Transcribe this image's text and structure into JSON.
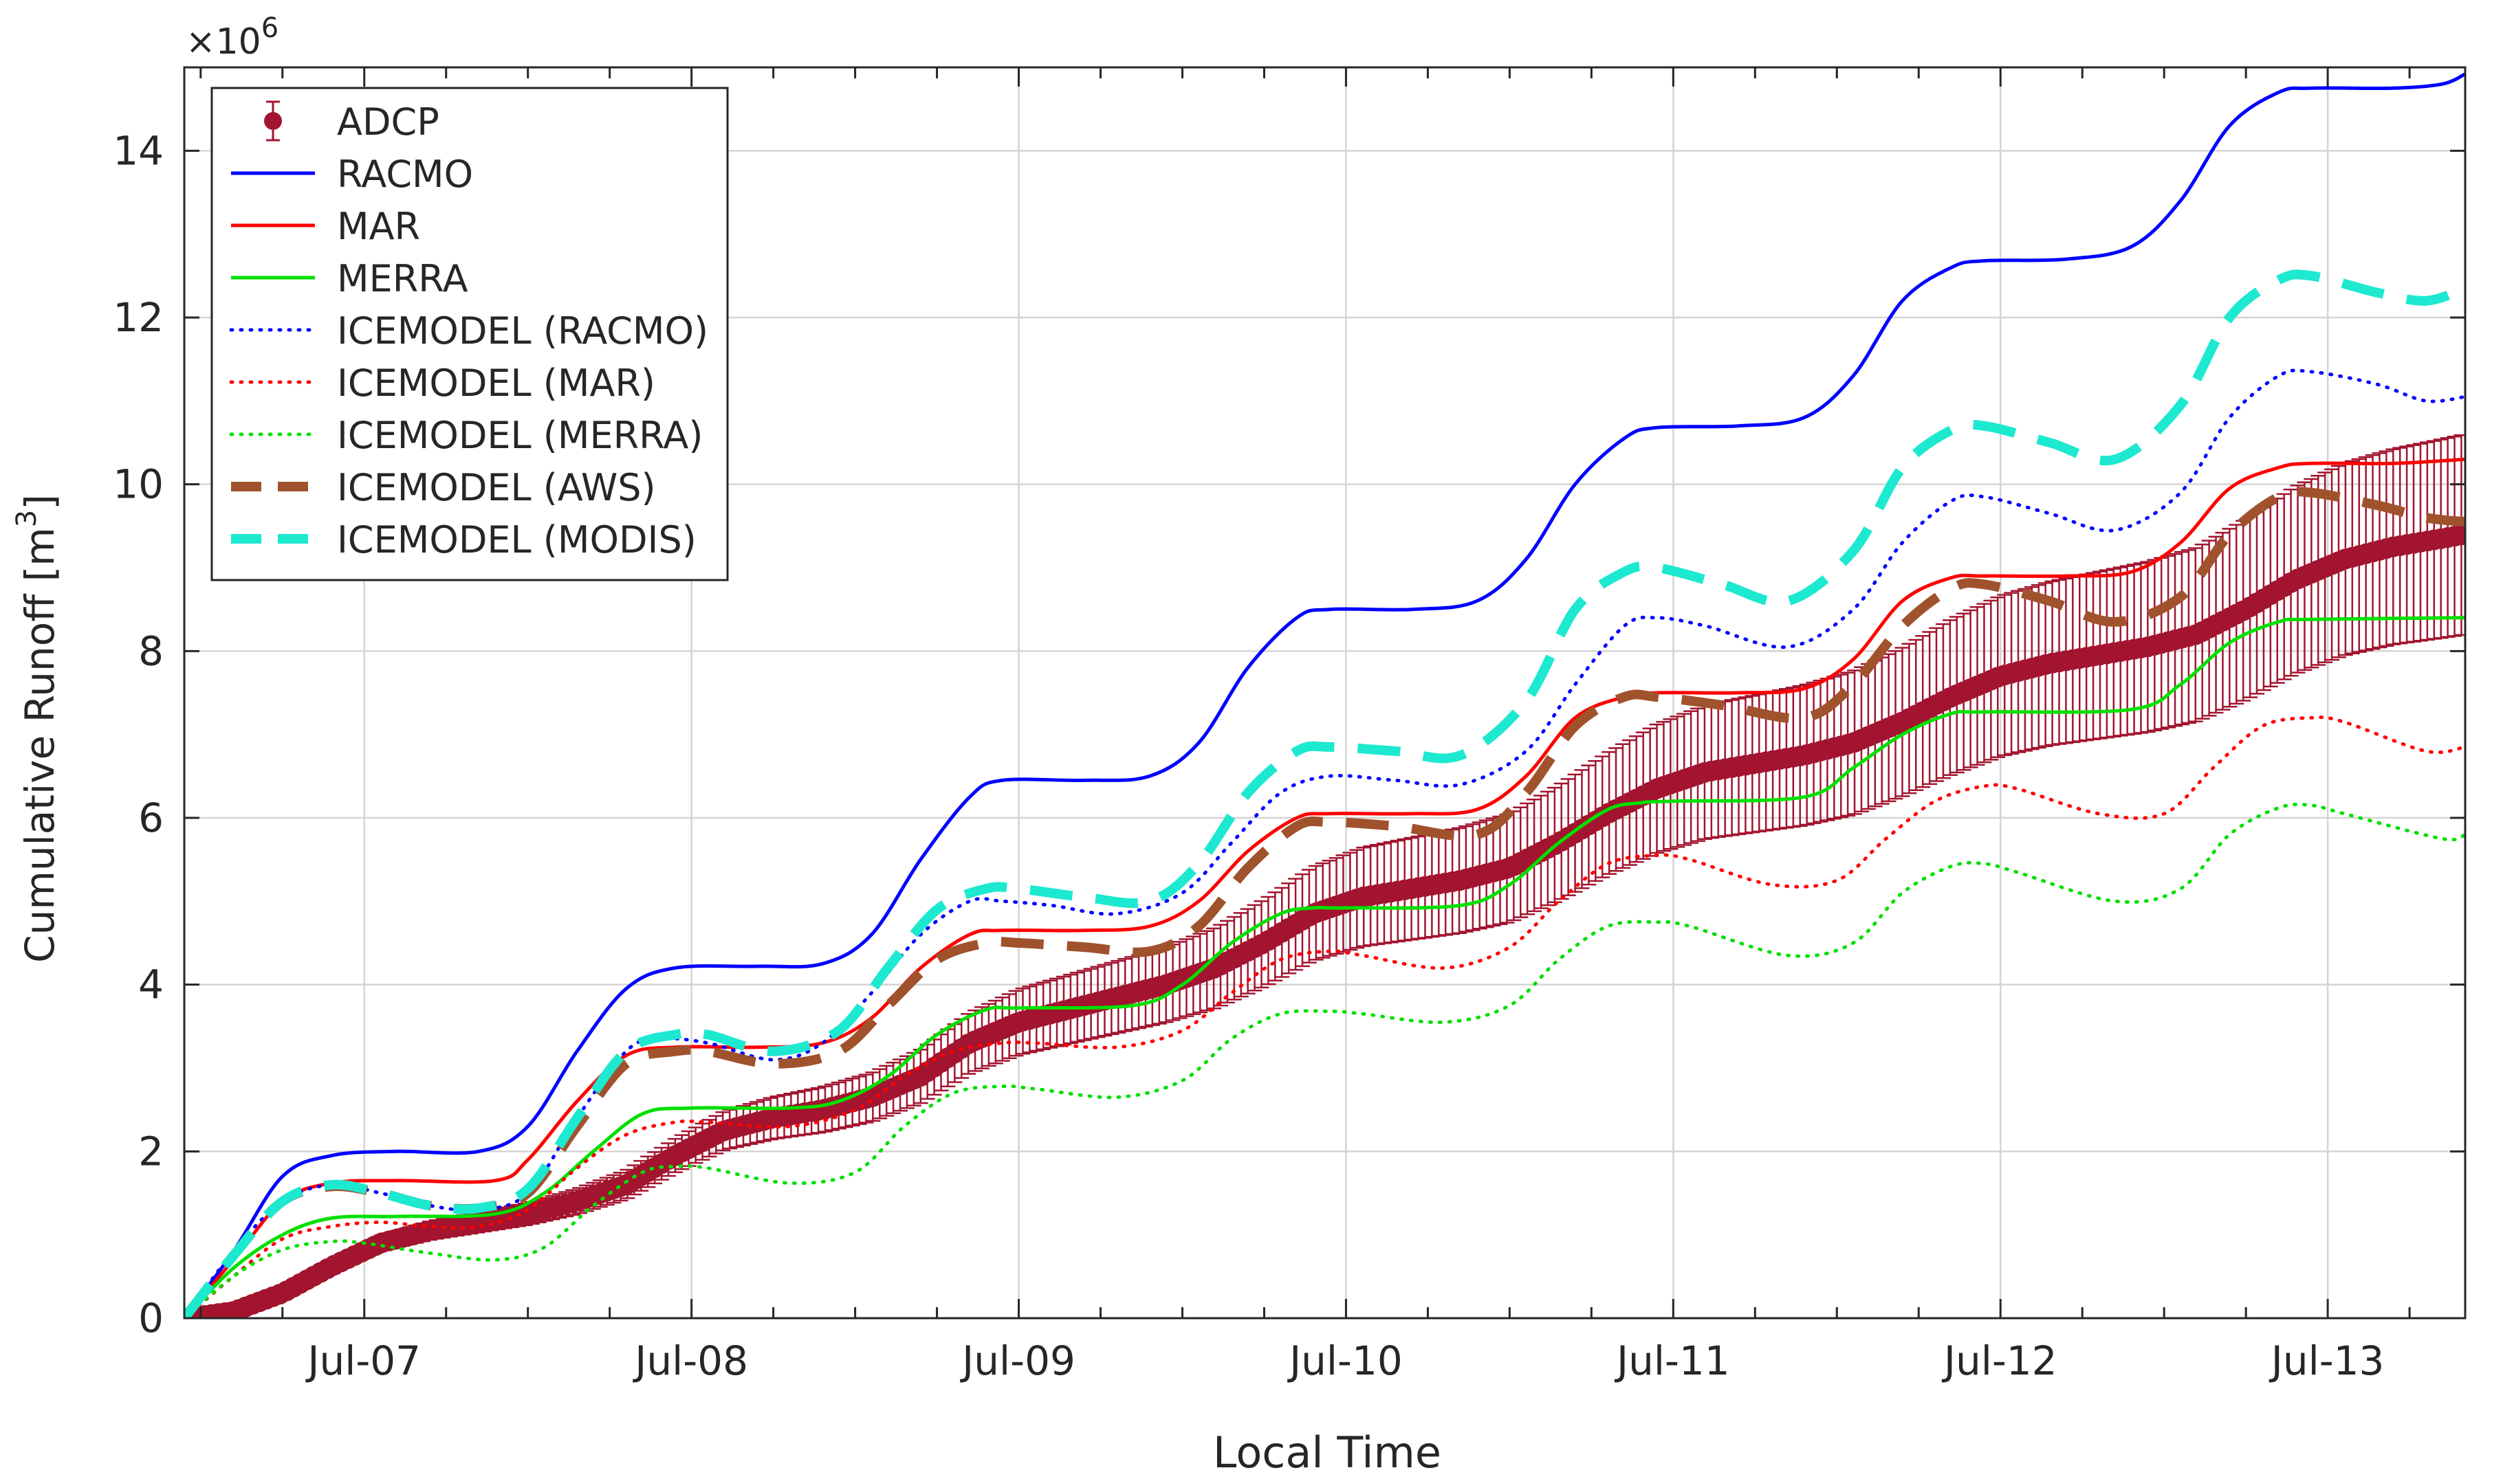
{
  "chart_data": {
    "type": "line",
    "xlabel": "Local Time",
    "ylabel": "Cumulative Runoff [m",
    "ylabel_sup": "3",
    "ylabel_close": "]",
    "y_exponent_prefix": "×10",
    "y_exponent_power": "6",
    "xlim": [
      6.45,
      13.42
    ],
    "ylim": [
      0,
      15
    ],
    "grid": true,
    "legend_position": "top-left",
    "x_ticks": [
      7,
      8,
      9,
      10,
      11,
      12,
      13
    ],
    "x_tick_labels": [
      "Jul-07",
      "Jul-08",
      "Jul-09",
      "Jul-10",
      "Jul-11",
      "Jul-12",
      "Jul-13"
    ],
    "y_ticks": [
      0,
      2,
      4,
      6,
      8,
      10,
      12,
      14
    ],
    "y_tick_labels": [
      "0",
      "2",
      "4",
      "6",
      "8",
      "10",
      "12",
      "14"
    ],
    "x_note": "x values are days of July (e.g. 7.0 = Jul-07 00:00)",
    "series": [
      {
        "name": "ADCP",
        "style": "errorbar-marker",
        "color": "#a2142f",
        "x": [
          6.45,
          6.6,
          6.75,
          6.9,
          7.05,
          7.2,
          7.35,
          7.5,
          7.65,
          7.8,
          7.95,
          8.1,
          8.25,
          8.4,
          8.55,
          8.7,
          8.85,
          9.0,
          9.15,
          9.3,
          9.45,
          9.6,
          9.75,
          9.9,
          10.05,
          10.2,
          10.35,
          10.5,
          10.65,
          10.8,
          10.95,
          11.1,
          11.25,
          11.4,
          11.55,
          11.7,
          11.85,
          12.0,
          12.15,
          12.3,
          12.45,
          12.6,
          12.75,
          12.9,
          13.05,
          13.2,
          13.35,
          13.42
        ],
        "y": [
          0,
          0.08,
          0.3,
          0.62,
          0.9,
          1.05,
          1.15,
          1.25,
          1.4,
          1.6,
          1.95,
          2.25,
          2.4,
          2.5,
          2.65,
          2.9,
          3.3,
          3.55,
          3.7,
          3.85,
          4.0,
          4.2,
          4.5,
          4.85,
          5.05,
          5.15,
          5.25,
          5.4,
          5.7,
          6.05,
          6.35,
          6.55,
          6.65,
          6.75,
          6.9,
          7.15,
          7.45,
          7.7,
          7.85,
          7.95,
          8.05,
          8.2,
          8.5,
          8.85,
          9.1,
          9.25,
          9.35,
          9.4
        ],
        "y_error": [
          0,
          0.01,
          0.03,
          0.06,
          0.09,
          0.11,
          0.12,
          0.13,
          0.15,
          0.17,
          0.2,
          0.23,
          0.25,
          0.27,
          0.29,
          0.32,
          0.36,
          0.39,
          0.41,
          0.43,
          0.45,
          0.48,
          0.52,
          0.56,
          0.59,
          0.61,
          0.63,
          0.65,
          0.69,
          0.73,
          0.77,
          0.8,
          0.82,
          0.84,
          0.86,
          0.89,
          0.93,
          0.96,
          0.98,
          1.0,
          1.02,
          1.04,
          1.08,
          1.12,
          1.15,
          1.17,
          1.19,
          1.2
        ]
      },
      {
        "name": "RACMO",
        "style": "solid",
        "color": "#0000ff",
        "x": [
          6.45,
          6.6,
          6.75,
          6.9,
          7.1,
          7.35,
          7.5,
          7.65,
          7.8,
          7.95,
          8.2,
          8.4,
          8.55,
          8.7,
          8.85,
          8.95,
          9.2,
          9.4,
          9.55,
          9.7,
          9.85,
          9.95,
          10.2,
          10.4,
          10.55,
          10.7,
          10.85,
          10.95,
          11.2,
          11.4,
          11.55,
          11.7,
          11.85,
          11.95,
          12.2,
          12.4,
          12.55,
          12.7,
          12.85,
          12.95,
          13.2,
          13.35,
          13.42
        ],
        "y": [
          0,
          0.8,
          1.7,
          1.95,
          2.0,
          2.0,
          2.3,
          3.2,
          3.95,
          4.2,
          4.22,
          4.25,
          4.6,
          5.5,
          6.25,
          6.45,
          6.45,
          6.5,
          6.9,
          7.8,
          8.4,
          8.5,
          8.5,
          8.6,
          9.1,
          10.0,
          10.55,
          10.68,
          10.7,
          10.8,
          11.3,
          12.2,
          12.6,
          12.68,
          12.7,
          12.85,
          13.4,
          14.3,
          14.7,
          14.75,
          14.75,
          14.8,
          14.92
        ]
      },
      {
        "name": "MAR",
        "style": "solid",
        "color": "#ff0000",
        "x": [
          6.45,
          6.6,
          6.75,
          6.9,
          7.1,
          7.4,
          7.5,
          7.65,
          7.8,
          7.95,
          8.2,
          8.4,
          8.55,
          8.7,
          8.85,
          8.95,
          9.2,
          9.4,
          9.55,
          9.7,
          9.85,
          9.95,
          10.2,
          10.4,
          10.55,
          10.7,
          10.85,
          10.95,
          11.2,
          11.4,
          11.55,
          11.7,
          11.85,
          11.95,
          12.2,
          12.4,
          12.55,
          12.7,
          12.85,
          12.95,
          13.2,
          13.42
        ],
        "y": [
          0,
          0.7,
          1.4,
          1.62,
          1.65,
          1.65,
          1.9,
          2.6,
          3.15,
          3.25,
          3.25,
          3.3,
          3.6,
          4.2,
          4.6,
          4.65,
          4.65,
          4.7,
          5.0,
          5.6,
          6.0,
          6.05,
          6.05,
          6.1,
          6.5,
          7.2,
          7.45,
          7.5,
          7.5,
          7.55,
          7.9,
          8.6,
          8.88,
          8.9,
          8.9,
          8.95,
          9.3,
          9.95,
          10.2,
          10.25,
          10.25,
          10.3
        ]
      },
      {
        "name": "MERRA",
        "style": "solid",
        "color": "#00e000",
        "x": [
          6.45,
          6.6,
          6.75,
          6.9,
          7.1,
          7.4,
          7.55,
          7.7,
          7.85,
          8.0,
          8.3,
          8.45,
          8.6,
          8.75,
          8.9,
          9.0,
          9.35,
          9.5,
          9.65,
          9.8,
          9.9,
          10.0,
          10.35,
          10.5,
          10.65,
          10.8,
          10.9,
          11.0,
          11.4,
          11.55,
          11.7,
          11.85,
          11.95,
          12.4,
          12.55,
          12.7,
          12.85,
          12.95,
          13.42
        ],
        "y": [
          0,
          0.6,
          1.0,
          1.2,
          1.22,
          1.25,
          1.5,
          2.0,
          2.45,
          2.52,
          2.52,
          2.6,
          2.9,
          3.4,
          3.7,
          3.72,
          3.75,
          4.0,
          4.5,
          4.85,
          4.92,
          4.92,
          4.95,
          5.2,
          5.7,
          6.1,
          6.18,
          6.2,
          6.25,
          6.6,
          7.0,
          7.25,
          7.27,
          7.3,
          7.6,
          8.1,
          8.35,
          8.38,
          8.4
        ]
      },
      {
        "name": "ICEMODEL (RACMO)",
        "style": "dotted",
        "color": "#0000ff",
        "x": [
          6.45,
          6.6,
          6.75,
          6.9,
          7.05,
          7.2,
          7.35,
          7.5,
          7.65,
          7.8,
          7.9,
          8.05,
          8.25,
          8.4,
          8.55,
          8.7,
          8.85,
          8.95,
          9.1,
          9.3,
          9.5,
          9.65,
          9.8,
          9.95,
          10.15,
          10.35,
          10.55,
          10.7,
          10.85,
          10.95,
          11.1,
          11.35,
          11.55,
          11.7,
          11.85,
          11.95,
          12.15,
          12.35,
          12.55,
          12.7,
          12.85,
          12.95,
          13.15,
          13.3,
          13.42
        ],
        "y": [
          0,
          0.8,
          1.4,
          1.6,
          1.5,
          1.35,
          1.3,
          1.5,
          2.4,
          3.2,
          3.35,
          3.3,
          3.1,
          3.3,
          3.9,
          4.6,
          5.0,
          5.0,
          4.95,
          4.85,
          5.1,
          5.7,
          6.3,
          6.5,
          6.45,
          6.4,
          6.8,
          7.6,
          8.3,
          8.4,
          8.3,
          8.05,
          8.5,
          9.3,
          9.8,
          9.85,
          9.65,
          9.45,
          9.9,
          10.8,
          11.3,
          11.35,
          11.2,
          11.0,
          11.05
        ]
      },
      {
        "name": "ICEMODEL (MAR)",
        "style": "dotted",
        "color": "#ff0000",
        "x": [
          6.45,
          6.6,
          6.75,
          6.9,
          7.05,
          7.2,
          7.35,
          7.5,
          7.65,
          7.8,
          7.95,
          8.05,
          8.3,
          8.5,
          8.65,
          8.8,
          8.95,
          9.05,
          9.3,
          9.5,
          9.65,
          9.8,
          9.95,
          10.05,
          10.3,
          10.5,
          10.65,
          10.8,
          10.95,
          11.05,
          11.3,
          11.5,
          11.65,
          11.8,
          11.95,
          12.05,
          12.3,
          12.5,
          12.65,
          12.8,
          12.95,
          13.05,
          13.3,
          13.42
        ],
        "y": [
          0,
          0.5,
          0.95,
          1.1,
          1.15,
          1.1,
          1.1,
          1.3,
          1.8,
          2.2,
          2.35,
          2.35,
          2.3,
          2.5,
          2.9,
          3.2,
          3.3,
          3.3,
          3.25,
          3.45,
          3.9,
          4.3,
          4.4,
          4.35,
          4.2,
          4.45,
          5.0,
          5.45,
          5.55,
          5.5,
          5.2,
          5.25,
          5.75,
          6.2,
          6.38,
          6.35,
          6.05,
          6.05,
          6.6,
          7.1,
          7.2,
          7.15,
          6.8,
          6.85
        ]
      },
      {
        "name": "ICEMODEL (MERRA)",
        "style": "dotted",
        "color": "#00e000",
        "x": [
          6.45,
          6.6,
          6.75,
          6.9,
          7.0,
          7.2,
          7.4,
          7.55,
          7.7,
          7.85,
          7.95,
          8.05,
          8.3,
          8.5,
          8.65,
          8.8,
          8.95,
          9.05,
          9.3,
          9.5,
          9.65,
          9.8,
          9.95,
          10.05,
          10.3,
          10.5,
          10.65,
          10.8,
          10.95,
          11.05,
          11.35,
          11.55,
          11.7,
          11.85,
          11.95,
          12.05,
          12.35,
          12.55,
          12.7,
          12.85,
          12.95,
          13.05,
          13.35,
          13.42
        ],
        "y": [
          0,
          0.5,
          0.82,
          0.92,
          0.9,
          0.78,
          0.7,
          0.85,
          1.35,
          1.75,
          1.82,
          1.8,
          1.62,
          1.75,
          2.3,
          2.7,
          2.78,
          2.75,
          2.65,
          2.85,
          3.35,
          3.65,
          3.68,
          3.65,
          3.55,
          3.75,
          4.3,
          4.7,
          4.75,
          4.7,
          4.35,
          4.5,
          5.1,
          5.42,
          5.45,
          5.35,
          5.0,
          5.15,
          5.8,
          6.12,
          6.15,
          6.05,
          5.75,
          5.8
        ]
      },
      {
        "name": "ICEMODEL (AWS)",
        "style": "dashed-thick",
        "color": "#a0522d",
        "x": [
          6.45,
          6.6,
          6.75,
          6.9,
          7.05,
          7.2,
          7.35,
          7.5,
          7.65,
          7.8,
          7.95,
          8.05,
          8.25,
          8.45,
          8.6,
          8.75,
          8.9,
          9.0,
          9.2,
          9.4,
          9.55,
          9.7,
          9.85,
          9.95,
          10.15,
          10.4,
          10.55,
          10.7,
          10.85,
          10.95,
          11.15,
          11.4,
          11.55,
          11.7,
          11.85,
          11.95,
          12.15,
          12.35,
          12.55,
          12.7,
          12.85,
          12.95,
          13.15,
          13.3,
          13.42
        ],
        "y": [
          0,
          0.75,
          1.4,
          1.58,
          1.5,
          1.35,
          1.32,
          1.5,
          2.3,
          3.05,
          3.2,
          3.2,
          3.05,
          3.2,
          3.75,
          4.3,
          4.5,
          4.5,
          4.45,
          4.4,
          4.7,
          5.4,
          5.9,
          5.95,
          5.9,
          5.8,
          6.3,
          7.1,
          7.45,
          7.45,
          7.35,
          7.2,
          7.6,
          8.3,
          8.75,
          8.8,
          8.6,
          8.35,
          8.65,
          9.4,
          9.85,
          9.9,
          9.75,
          9.6,
          9.55
        ]
      },
      {
        "name": "ICEMODEL (MODIS)",
        "style": "dashed-thick",
        "color": "#1de9d0",
        "x": [
          6.45,
          6.6,
          6.75,
          6.9,
          7.05,
          7.2,
          7.35,
          7.5,
          7.65,
          7.8,
          7.95,
          8.05,
          8.25,
          8.45,
          8.6,
          8.75,
          8.9,
          9.0,
          9.2,
          9.4,
          9.55,
          9.7,
          9.85,
          9.95,
          10.15,
          10.35,
          10.55,
          10.7,
          10.85,
          10.95,
          11.15,
          11.35,
          11.55,
          11.7,
          11.85,
          11.95,
          12.15,
          12.35,
          12.55,
          12.7,
          12.85,
          12.95,
          13.15,
          13.3,
          13.42
        ],
        "y": [
          0,
          0.75,
          1.4,
          1.6,
          1.5,
          1.35,
          1.32,
          1.55,
          2.4,
          3.2,
          3.4,
          3.4,
          3.2,
          3.45,
          4.2,
          4.9,
          5.15,
          5.15,
          5.05,
          5.0,
          5.45,
          6.3,
          6.8,
          6.85,
          6.8,
          6.75,
          7.4,
          8.5,
          8.95,
          9.0,
          8.8,
          8.6,
          9.2,
          10.2,
          10.65,
          10.7,
          10.5,
          10.3,
          10.95,
          12.0,
          12.45,
          12.5,
          12.3,
          12.2,
          12.35
        ]
      }
    ]
  }
}
